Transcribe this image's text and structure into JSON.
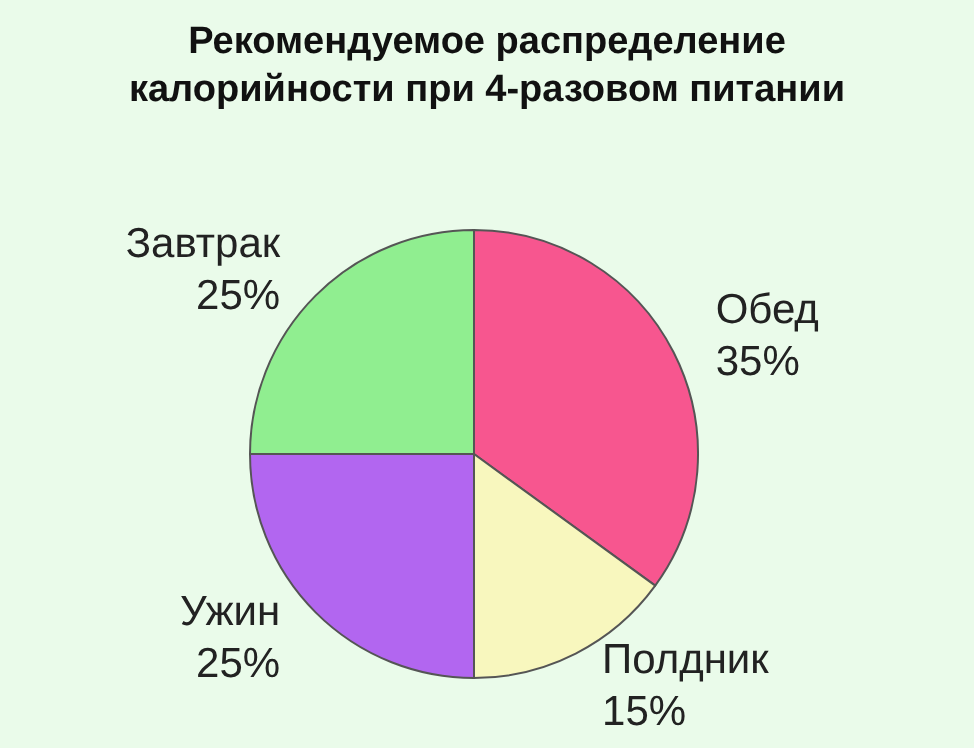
{
  "chart_data": {
    "type": "pie",
    "title": "Рекомендуемое распределение\nкалорийности при 4-разовом питании",
    "categories": [
      "Обед",
      "Полдник",
      "Ужин",
      "Завтрак"
    ],
    "values": [
      35,
      15,
      25,
      25
    ],
    "value_labels": [
      "35%",
      "15%",
      "25%",
      "25%"
    ],
    "colors": [
      "#f7568f",
      "#f8f7be",
      "#b266f0",
      "#90ee90"
    ],
    "legend": false
  }
}
